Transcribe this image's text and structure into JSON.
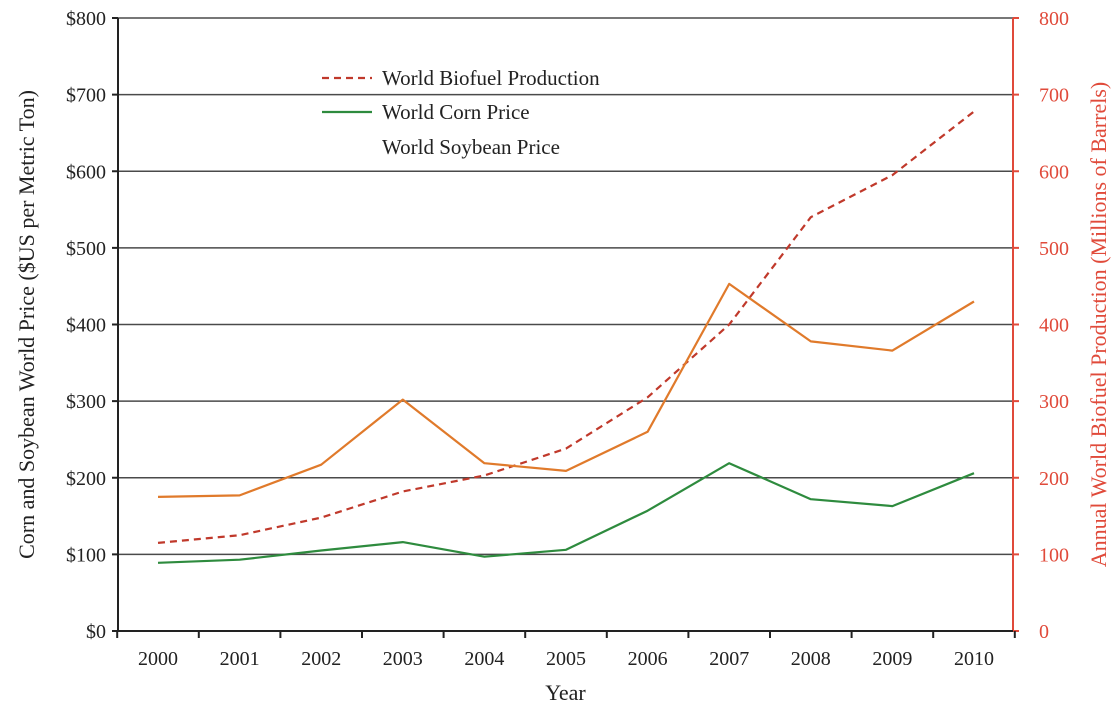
{
  "chart_data": {
    "type": "line",
    "xlabel": "Year",
    "ylabel_left": "Corn and Soybean World Price ($US per Metric Ton)",
    "ylabel_right": "Annual World Biofuel Production (Millions of Barrels)",
    "categories": [
      "2000",
      "2001",
      "2002",
      "2003",
      "2004",
      "2005",
      "2006",
      "2007",
      "2008",
      "2009",
      "2010"
    ],
    "y_left": {
      "ylim": [
        0,
        800
      ],
      "ticks": [
        0,
        100,
        200,
        300,
        400,
        500,
        600,
        700,
        800
      ],
      "tick_labels": [
        "$0",
        "$100",
        "$200",
        "$300",
        "$400",
        "$500",
        "$600",
        "$700",
        "$800"
      ]
    },
    "y_right": {
      "ylim": [
        0,
        800
      ],
      "ticks": [
        0,
        100,
        200,
        300,
        400,
        500,
        600,
        700,
        800
      ],
      "tick_labels": [
        "0",
        "100",
        "200",
        "300",
        "400",
        "500",
        "600",
        "700",
        "800"
      ]
    },
    "grid": "horizontal",
    "legend_position": "top-left",
    "series": [
      {
        "name": "World Biofuel Production",
        "axis": "right",
        "style": "dashed",
        "color": "#c0392b",
        "values": [
          115,
          125,
          148,
          182,
          203,
          238,
          305,
          400,
          540,
          595,
          678
        ]
      },
      {
        "name": "World Corn Price",
        "axis": "left",
        "style": "solid",
        "color": "#2e8b3e",
        "values": [
          89,
          93,
          105,
          116,
          97,
          106,
          157,
          219,
          172,
          163,
          206
        ]
      },
      {
        "name": "World Soybean Price",
        "axis": "left",
        "style": "solid",
        "color": "#e07a2b",
        "values": [
          175,
          177,
          217,
          302,
          219,
          209,
          260,
          453,
          378,
          366,
          430
        ]
      }
    ]
  }
}
